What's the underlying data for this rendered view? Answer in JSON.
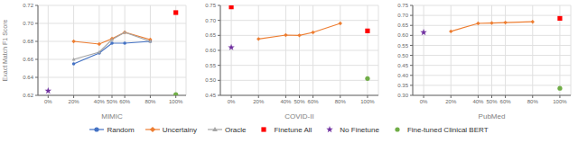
{
  "chart_data": [
    {
      "type": "line",
      "xlabel": "MIMIC",
      "ylabel": "Exact Match F1 Score",
      "x": [
        0,
        20,
        40,
        50,
        60,
        80,
        100
      ],
      "xlim": [
        -8,
        108
      ],
      "xticks": [
        {
          "value": 0,
          "label": "0%"
        },
        {
          "value": 20,
          "label": "20%"
        },
        {
          "value": 40,
          "label": "40%"
        },
        {
          "value": 50,
          "label": "50%"
        },
        {
          "value": 60,
          "label": "60%"
        },
        {
          "value": 80,
          "label": "80%"
        },
        {
          "value": 100,
          "label": "100%"
        }
      ],
      "ylim": [
        0.62,
        0.72
      ],
      "yticks": [
        0.62,
        0.64,
        0.66,
        0.68,
        {
          "value": 0.7,
          "label": "0.70"
        },
        0.72
      ],
      "grid": true,
      "legend": "bottom",
      "series": [
        {
          "name": "Random",
          "type": "line",
          "marker": "circle",
          "color": "#4472C4",
          "values": [
            null,
            0.655,
            0.667,
            0.678,
            0.678,
            0.68,
            null
          ]
        },
        {
          "name": "Uncertainy",
          "type": "line",
          "marker": "diamond",
          "color": "#ED7D31",
          "values": [
            null,
            0.68,
            0.677,
            0.683,
            0.69,
            0.682,
            null
          ]
        },
        {
          "name": "Oracle",
          "type": "line",
          "marker": "triangle",
          "color": "#A5A5A5",
          "values": [
            null,
            0.66,
            0.668,
            0.682,
            0.69,
            0.68,
            null
          ]
        },
        {
          "name": "Finetune All",
          "type": "scatter",
          "marker": "square",
          "color": "#FF0000",
          "values": [
            null,
            null,
            null,
            null,
            null,
            null,
            0.712
          ]
        },
        {
          "name": "No Finetune",
          "type": "scatter",
          "marker": "star",
          "color": "#7030A0",
          "values": [
            0.625,
            null,
            null,
            null,
            null,
            null,
            null
          ]
        },
        {
          "name": "Fine-tuned Clinical BERT",
          "type": "scatter",
          "marker": "circle",
          "color": "#70AD47",
          "values": [
            null,
            null,
            null,
            null,
            null,
            null,
            0.621
          ]
        }
      ]
    },
    {
      "type": "line",
      "xlabel": "COVID-II",
      "x": [
        0,
        20,
        40,
        50,
        60,
        80,
        100
      ],
      "xlim": [
        -8,
        108
      ],
      "xticks": [
        {
          "value": 0,
          "label": "0%"
        },
        {
          "value": 20,
          "label": "20%"
        },
        {
          "value": 40,
          "label": "40%"
        },
        {
          "value": 50,
          "label": "50%"
        },
        {
          "value": 60,
          "label": "60%"
        },
        {
          "value": 80,
          "label": "80%"
        },
        {
          "value": 100,
          "label": "100%"
        }
      ],
      "ylim": [
        0.45,
        0.75
      ],
      "yticks": [
        0.45,
        {
          "value": 0.5,
          "label": "0.50"
        },
        0.55,
        {
          "value": 0.6,
          "label": "0.60"
        },
        0.65,
        {
          "value": 0.7,
          "label": "0.70"
        },
        0.75
      ],
      "grid": true,
      "legend": "bottom",
      "series": [
        {
          "name": "Uncertainy",
          "type": "line",
          "marker": "diamond",
          "color": "#ED7D31",
          "values": [
            null,
            0.638,
            0.651,
            0.65,
            0.66,
            0.69,
            null
          ]
        },
        {
          "name": "Finetune All",
          "type": "scatter",
          "marker": "square",
          "color": "#FF0000",
          "values": [
            0.745,
            null,
            null,
            null,
            null,
            null,
            0.665
          ]
        },
        {
          "name": "No Finetune",
          "type": "scatter",
          "marker": "star",
          "color": "#7030A0",
          "values": [
            0.61,
            null,
            null,
            null,
            null,
            null,
            null
          ]
        },
        {
          "name": "Fine-tuned Clinical BERT",
          "type": "scatter",
          "marker": "circle",
          "color": "#70AD47",
          "values": [
            null,
            null,
            null,
            null,
            null,
            null,
            0.506
          ]
        }
      ]
    },
    {
      "type": "line",
      "xlabel": "PubMed",
      "x": [
        0,
        20,
        40,
        50,
        60,
        80,
        100
      ],
      "xlim": [
        -8,
        108
      ],
      "xticks": [
        {
          "value": 0,
          "label": "0%"
        },
        {
          "value": 20,
          "label": "20%"
        },
        {
          "value": 40,
          "label": "40%"
        },
        {
          "value": 50,
          "label": "50%"
        },
        {
          "value": 60,
          "label": "60%"
        },
        {
          "value": 80,
          "label": "80%"
        },
        {
          "value": 100,
          "label": "100%"
        }
      ],
      "ylim": [
        0.3,
        0.75
      ],
      "yticks": [
        {
          "value": 0.3,
          "label": "0.30"
        },
        0.35,
        {
          "value": 0.4,
          "label": "0.40"
        },
        0.45,
        {
          "value": 0.5,
          "label": "0.50"
        },
        0.55,
        {
          "value": 0.6,
          "label": "0.60"
        },
        0.65,
        {
          "value": 0.7,
          "label": "0.70"
        },
        0.75
      ],
      "grid": true,
      "legend": "bottom",
      "series": [
        {
          "name": "Uncertainy",
          "type": "line",
          "marker": "diamond",
          "color": "#ED7D31",
          "values": [
            null,
            0.62,
            0.66,
            0.662,
            0.664,
            0.668,
            null
          ]
        },
        {
          "name": "Finetune All",
          "type": "scatter",
          "marker": "square",
          "color": "#FF0000",
          "values": [
            null,
            null,
            null,
            null,
            null,
            null,
            0.685
          ]
        },
        {
          "name": "No Finetune",
          "type": "scatter",
          "marker": "star",
          "color": "#7030A0",
          "values": [
            0.615,
            null,
            null,
            null,
            null,
            null,
            null
          ]
        },
        {
          "name": "Fine-tuned Clinical BERT",
          "type": "scatter",
          "marker": "circle",
          "color": "#70AD47",
          "values": [
            null,
            null,
            null,
            null,
            null,
            null,
            0.335
          ]
        }
      ]
    }
  ]
}
